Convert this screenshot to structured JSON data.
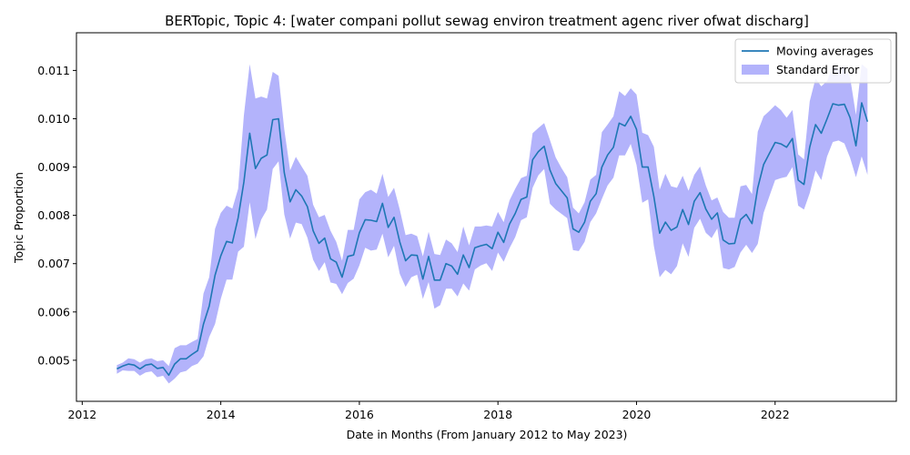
{
  "chart_data": {
    "type": "line",
    "title": "BERTopic, Topic 4: [water compani pollut sewag environ treatment agenc river ofwat discharg]",
    "xlabel": "Date in Months (From January 2012 to May 2023)",
    "ylabel": "Topic Proportion",
    "x_ticks": [
      "2012",
      "2014",
      "2016",
      "2018",
      "2020",
      "2022"
    ],
    "y_ticks": [
      "0.005",
      "0.006",
      "0.007",
      "0.008",
      "0.009",
      "0.010",
      "0.011"
    ],
    "xlim": [
      "2011-12",
      "2023-10"
    ],
    "ylim": [
      0.00415,
      0.01178
    ],
    "grid": false,
    "legend_position": "top-right",
    "colors": {
      "line": "#1f77b4",
      "band": "#b3b3fb"
    },
    "series": [
      {
        "name": "Moving averages",
        "kind": "line",
        "x": [
          "2012-07",
          "2012-08",
          "2012-09",
          "2012-10",
          "2012-11",
          "2012-12",
          "2013-01",
          "2013-02",
          "2013-03",
          "2013-04",
          "2013-05",
          "2013-06",
          "2013-07",
          "2013-08",
          "2013-09",
          "2013-10",
          "2013-11",
          "2013-12",
          "2014-01",
          "2014-02",
          "2014-03",
          "2014-04",
          "2014-05",
          "2014-06",
          "2014-07",
          "2014-08",
          "2014-09",
          "2014-10",
          "2014-11",
          "2014-12",
          "2015-01",
          "2015-02",
          "2015-03",
          "2015-04",
          "2015-05",
          "2015-06",
          "2015-07",
          "2015-08",
          "2015-09",
          "2015-10",
          "2015-11",
          "2015-12",
          "2016-01",
          "2016-02",
          "2016-03",
          "2016-04",
          "2016-05",
          "2016-06",
          "2016-07",
          "2016-08",
          "2016-09",
          "2016-10",
          "2016-11",
          "2016-12",
          "2017-01",
          "2017-02",
          "2017-03",
          "2017-04",
          "2017-05",
          "2017-06",
          "2017-07",
          "2017-08",
          "2017-09",
          "2017-10",
          "2017-11",
          "2017-12",
          "2018-01",
          "2018-02",
          "2018-03",
          "2018-04",
          "2018-05",
          "2018-06",
          "2018-07",
          "2018-08",
          "2018-09",
          "2018-10",
          "2018-11",
          "2018-12",
          "2019-01",
          "2019-02",
          "2019-03",
          "2019-04",
          "2019-05",
          "2019-06",
          "2019-07",
          "2019-08",
          "2019-09",
          "2019-10",
          "2019-11",
          "2019-12",
          "2020-01",
          "2020-02",
          "2020-03",
          "2020-04",
          "2020-05",
          "2020-06",
          "2020-07",
          "2020-08",
          "2020-09",
          "2020-10",
          "2020-11",
          "2020-12",
          "2021-01",
          "2021-02",
          "2021-03",
          "2021-04",
          "2021-05",
          "2021-06",
          "2021-07",
          "2021-08",
          "2021-09",
          "2021-10",
          "2021-11",
          "2021-12",
          "2022-01",
          "2022-02",
          "2022-03",
          "2022-04",
          "2022-05",
          "2022-06",
          "2022-07",
          "2022-08",
          "2022-09",
          "2022-10",
          "2022-11",
          "2022-12",
          "2023-01",
          "2023-02",
          "2023-03",
          "2023-04",
          "2023-05"
        ],
        "y": [
          0.00482,
          0.00488,
          0.00492,
          0.0049,
          0.00482,
          0.0049,
          0.00492,
          0.00483,
          0.00485,
          0.00469,
          0.00492,
          0.00503,
          0.00503,
          0.00512,
          0.0052,
          0.00575,
          0.00612,
          0.00676,
          0.00716,
          0.00746,
          0.00743,
          0.00795,
          0.00869,
          0.0097,
          0.00897,
          0.00918,
          0.00925,
          0.00998,
          0.01,
          0.00888,
          0.00828,
          0.00853,
          0.0084,
          0.00818,
          0.00768,
          0.00742,
          0.00753,
          0.0071,
          0.00703,
          0.00672,
          0.00715,
          0.00718,
          0.00764,
          0.00791,
          0.0079,
          0.00787,
          0.00825,
          0.00775,
          0.00796,
          0.00745,
          0.00706,
          0.00718,
          0.00717,
          0.00668,
          0.00715,
          0.00666,
          0.00666,
          0.007,
          0.00695,
          0.00678,
          0.00718,
          0.00692,
          0.00733,
          0.00737,
          0.0074,
          0.00731,
          0.00765,
          0.00744,
          0.00782,
          0.00804,
          0.00833,
          0.00838,
          0.00915,
          0.00932,
          0.00943,
          0.00894,
          0.00866,
          0.00851,
          0.00836,
          0.00772,
          0.00765,
          0.00786,
          0.00829,
          0.00845,
          0.009,
          0.00925,
          0.00941,
          0.00991,
          0.00985,
          0.01005,
          0.00978,
          0.009,
          0.009,
          0.00839,
          0.00763,
          0.00786,
          0.00769,
          0.00776,
          0.00812,
          0.00781,
          0.00829,
          0.00847,
          0.00813,
          0.00792,
          0.00805,
          0.00749,
          0.00741,
          0.00742,
          0.00791,
          0.00802,
          0.00783,
          0.00857,
          0.00905,
          0.00928,
          0.00951,
          0.00948,
          0.00941,
          0.00959,
          0.00873,
          0.00864,
          0.00941,
          0.00988,
          0.0097,
          0.01,
          0.01031,
          0.01028,
          0.0103,
          0.01002,
          0.00944,
          0.01033,
          0.00994
        ]
      },
      {
        "name": "Standard Error",
        "kind": "band",
        "x_ref": "Moving averages",
        "upper": [
          0.0049,
          0.00495,
          0.00504,
          0.00502,
          0.00495,
          0.00502,
          0.00504,
          0.00498,
          0.005,
          0.00488,
          0.00525,
          0.00531,
          0.00531,
          0.00538,
          0.00544,
          0.00638,
          0.00672,
          0.00772,
          0.00805,
          0.0082,
          0.00814,
          0.00855,
          0.01007,
          0.01113,
          0.01042,
          0.01046,
          0.01042,
          0.01097,
          0.01089,
          0.00978,
          0.00893,
          0.00921,
          0.00901,
          0.00882,
          0.00822,
          0.00796,
          0.00801,
          0.00768,
          0.00745,
          0.00706,
          0.0077,
          0.0077,
          0.00833,
          0.00848,
          0.00853,
          0.00845,
          0.00886,
          0.00838,
          0.00857,
          0.00812,
          0.00759,
          0.00762,
          0.00757,
          0.00715,
          0.00766,
          0.0072,
          0.00718,
          0.0075,
          0.00742,
          0.00724,
          0.00777,
          0.00738,
          0.00777,
          0.00777,
          0.00779,
          0.00777,
          0.00807,
          0.00786,
          0.00831,
          0.00855,
          0.00877,
          0.00882,
          0.0097,
          0.00981,
          0.00991,
          0.00956,
          0.0092,
          0.00898,
          0.00879,
          0.00816,
          0.00804,
          0.00827,
          0.00874,
          0.00884,
          0.00972,
          0.00988,
          0.01005,
          0.01057,
          0.01047,
          0.01063,
          0.0105,
          0.00971,
          0.00966,
          0.00942,
          0.00853,
          0.00886,
          0.0086,
          0.00857,
          0.00882,
          0.00851,
          0.00884,
          0.00901,
          0.00862,
          0.00831,
          0.00837,
          0.00807,
          0.00795,
          0.00795,
          0.0086,
          0.00863,
          0.00844,
          0.00973,
          0.01005,
          0.01016,
          0.01028,
          0.01018,
          0.01002,
          0.01018,
          0.00926,
          0.00916,
          0.01036,
          0.01083,
          0.01067,
          0.01078,
          0.0111,
          0.011,
          0.01111,
          0.01085,
          0.01008,
          0.01113,
          0.01103
        ],
        "lower": [
          0.00472,
          0.00479,
          0.00478,
          0.00478,
          0.00468,
          0.00475,
          0.00477,
          0.00465,
          0.00468,
          0.00452,
          0.00462,
          0.00475,
          0.00478,
          0.00488,
          0.00493,
          0.00508,
          0.00548,
          0.00575,
          0.00627,
          0.00667,
          0.00667,
          0.00725,
          0.00735,
          0.00827,
          0.00751,
          0.00791,
          0.00812,
          0.00896,
          0.00912,
          0.00802,
          0.00752,
          0.00785,
          0.00782,
          0.00754,
          0.00708,
          0.00685,
          0.00703,
          0.00661,
          0.00658,
          0.00637,
          0.0066,
          0.00669,
          0.00696,
          0.00733,
          0.00727,
          0.00729,
          0.00762,
          0.00713,
          0.00737,
          0.00679,
          0.00652,
          0.00672,
          0.00677,
          0.00627,
          0.00662,
          0.00607,
          0.00614,
          0.00648,
          0.00648,
          0.00632,
          0.00659,
          0.00644,
          0.00688,
          0.00696,
          0.00701,
          0.00685,
          0.00723,
          0.00704,
          0.00732,
          0.00755,
          0.0079,
          0.00796,
          0.00857,
          0.00883,
          0.00896,
          0.00824,
          0.00812,
          0.00803,
          0.00794,
          0.00728,
          0.00726,
          0.00745,
          0.00786,
          0.00804,
          0.00834,
          0.00862,
          0.00878,
          0.00924,
          0.00924,
          0.00948,
          0.00904,
          0.00826,
          0.00833,
          0.00737,
          0.00672,
          0.00687,
          0.00678,
          0.00695,
          0.00742,
          0.00714,
          0.00774,
          0.00793,
          0.00764,
          0.00753,
          0.00773,
          0.00691,
          0.00688,
          0.00693,
          0.00723,
          0.00739,
          0.00722,
          0.00741,
          0.00805,
          0.00839,
          0.00873,
          0.00877,
          0.0088,
          0.009,
          0.0082,
          0.00812,
          0.00846,
          0.00893,
          0.00873,
          0.00922,
          0.00952,
          0.00955,
          0.00949,
          0.00919,
          0.00879,
          0.00922,
          0.00884
        ]
      }
    ]
  }
}
